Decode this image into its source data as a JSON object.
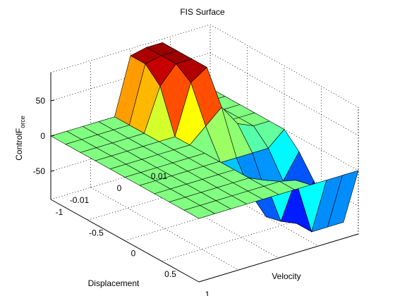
{
  "chart_data": {
    "type": "surface",
    "title": "FIS Surface",
    "xlabel": "Velocity",
    "ylabel": "Displacement",
    "zlabel": "ControlF orce",
    "zlabel_main": "ControlF",
    "zlabel_sub": "orce",
    "grid": true,
    "colormap": "jet",
    "xlim": [
      -1,
      1
    ],
    "ylim": [
      -0.02,
      0.02
    ],
    "zlim": [
      -90,
      90
    ],
    "x_ticks": [
      -1,
      -0.5,
      0,
      0.5,
      1
    ],
    "x_tick_labels": [
      "-1",
      "-0.5",
      "0",
      "0.5",
      "1"
    ],
    "y_ticks": [
      -0.01,
      0,
      0.01
    ],
    "y_tick_labels": [
      "-0.01",
      "0",
      "0.01"
    ],
    "z_ticks": [
      -50,
      0,
      50
    ],
    "z_tick_labels": [
      "-50",
      "0",
      "50"
    ],
    "x_grid": [
      -1,
      -0.8,
      -0.6,
      -0.4,
      -0.2,
      0,
      0.2,
      0.4,
      0.6,
      0.8,
      1
    ],
    "y_grid": [
      -0.02,
      -0.016,
      -0.012,
      -0.008,
      -0.004,
      0,
      0.004,
      0.008,
      0.012,
      0.016,
      0.02
    ],
    "z": [
      [
        0,
        0,
        0,
        0,
        0,
        0,
        0,
        0,
        0,
        0,
        0
      ],
      [
        0,
        0,
        0,
        0,
        0,
        0,
        0,
        0,
        0,
        0,
        0
      ],
      [
        0,
        0,
        0,
        0,
        0,
        0,
        0,
        0,
        0,
        0,
        0
      ],
      [
        0,
        0,
        0,
        0,
        0,
        0,
        0,
        0,
        0,
        0,
        0
      ],
      [
        0,
        0,
        0,
        0,
        0,
        0,
        0,
        0,
        0,
        0,
        0
      ],
      [
        80,
        80,
        60,
        0,
        0,
        0,
        0,
        0,
        0,
        0,
        0
      ],
      [
        85,
        85,
        85,
        70,
        20,
        -20,
        -30,
        -40,
        -10,
        0,
        0
      ],
      [
        85,
        85,
        85,
        85,
        40,
        -20,
        -60,
        -80,
        -75,
        -5,
        0
      ],
      [
        0,
        0,
        0,
        0,
        10,
        -20,
        -70,
        -85,
        -85,
        -85,
        0
      ],
      [
        0,
        0,
        0,
        0,
        0,
        -20,
        -55,
        -85,
        -85,
        -85,
        0
      ],
      [
        0,
        0,
        0,
        0,
        0,
        0,
        -20,
        -50,
        -80,
        -85,
        0
      ]
    ]
  }
}
